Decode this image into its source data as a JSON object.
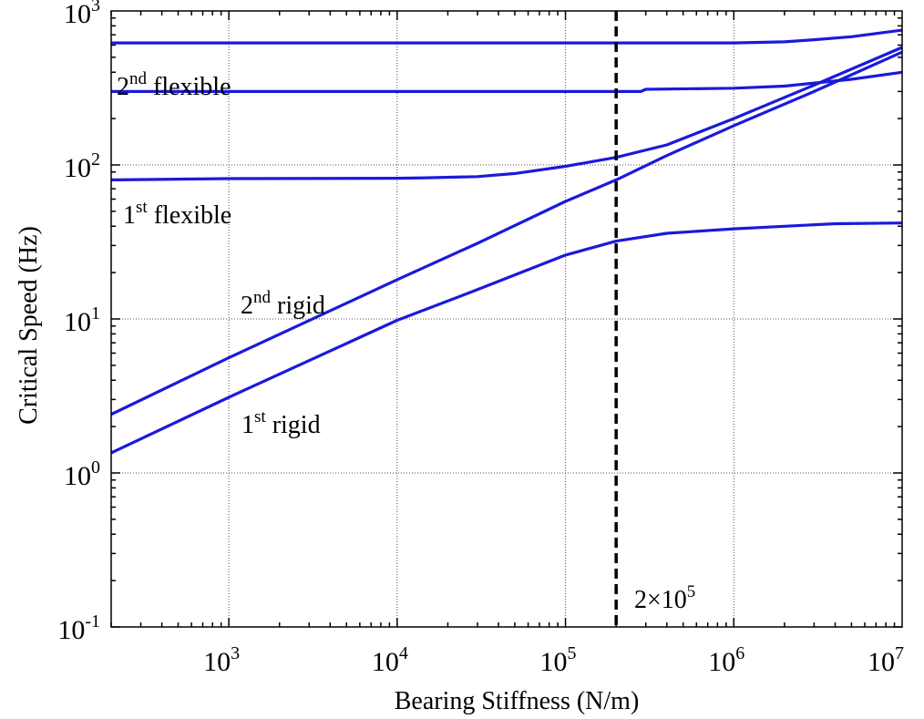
{
  "chart_data": {
    "type": "line",
    "title": "",
    "xlabel": "Bearing Stiffness (N/m)",
    "ylabel": "Critical Speed (Hz)",
    "xscale": "log",
    "yscale": "log",
    "xlim": [
      200,
      10000000
    ],
    "ylim": [
      0.1,
      1000
    ],
    "grid": "dotted",
    "x_ticks": [
      {
        "base": "10",
        "exp": "3",
        "value": 1000
      },
      {
        "base": "10",
        "exp": "4",
        "value": 10000
      },
      {
        "base": "10",
        "exp": "5",
        "value": 100000
      },
      {
        "base": "10",
        "exp": "6",
        "value": 1000000
      },
      {
        "base": "10",
        "exp": "7",
        "value": 10000000
      }
    ],
    "y_ticks": [
      {
        "base": "10",
        "exp": "-1",
        "value": 0.1
      },
      {
        "base": "10",
        "exp": "0",
        "value": 1
      },
      {
        "base": "10",
        "exp": "1",
        "value": 10
      },
      {
        "base": "10",
        "exp": "2",
        "value": 100
      },
      {
        "base": "10",
        "exp": "3",
        "value": 1000
      }
    ],
    "series_color": "#1a1adb",
    "series": [
      {
        "x": [
          200,
          1000,
          10000,
          30000,
          100000,
          200000,
          400000,
          1000000,
          2000000,
          4000000,
          10000000
        ],
        "y": [
          1.35,
          3.1,
          9.8,
          15.5,
          26,
          32,
          36,
          38.5,
          40,
          41.5,
          42
        ]
      },
      {
        "x": [
          200,
          1000,
          10000,
          30000,
          100000,
          200000,
          400000,
          1000000,
          3000000,
          10000000
        ],
        "y": [
          2.4,
          5.6,
          18,
          31,
          58,
          80,
          115,
          180,
          300,
          540
        ]
      },
      {
        "x": [
          200,
          1000,
          10000,
          15000,
          30000,
          50000,
          100000,
          200000,
          400000,
          1000000,
          3000000,
          10000000
        ],
        "y": [
          80,
          81.5,
          82,
          82.5,
          84,
          88,
          98,
          112,
          135,
          200,
          330,
          580
        ]
      },
      {
        "x": [
          200,
          1000,
          10000,
          100000,
          280000,
          300000,
          1000000,
          2000000,
          5000000,
          10000000
        ],
        "y": [
          300,
          300,
          300,
          300,
          300,
          310,
          315,
          325,
          360,
          400
        ]
      },
      {
        "x": [
          200,
          1000,
          10000,
          100000,
          1000000,
          2000000,
          3000000,
          5000000,
          10000000
        ],
        "y": [
          620,
          620,
          620,
          620,
          620,
          630,
          650,
          680,
          750
        ]
      }
    ],
    "reference_line": {
      "x": 200000,
      "style": "dashed",
      "color": "#000000"
    },
    "annotations": [
      {
        "key": "flex2",
        "ordinal": "2",
        "sup": "nd",
        "text": " flexible"
      },
      {
        "key": "flex1",
        "ordinal": "1",
        "sup": "st",
        "text": " flexible"
      },
      {
        "key": "rigid2",
        "ordinal": "2",
        "sup": "nd",
        "text": " rigid"
      },
      {
        "key": "rigid1",
        "ordinal": "1",
        "sup": "st",
        "text": " rigid"
      },
      {
        "key": "ref",
        "text": "2×10",
        "sup": "5"
      }
    ]
  }
}
